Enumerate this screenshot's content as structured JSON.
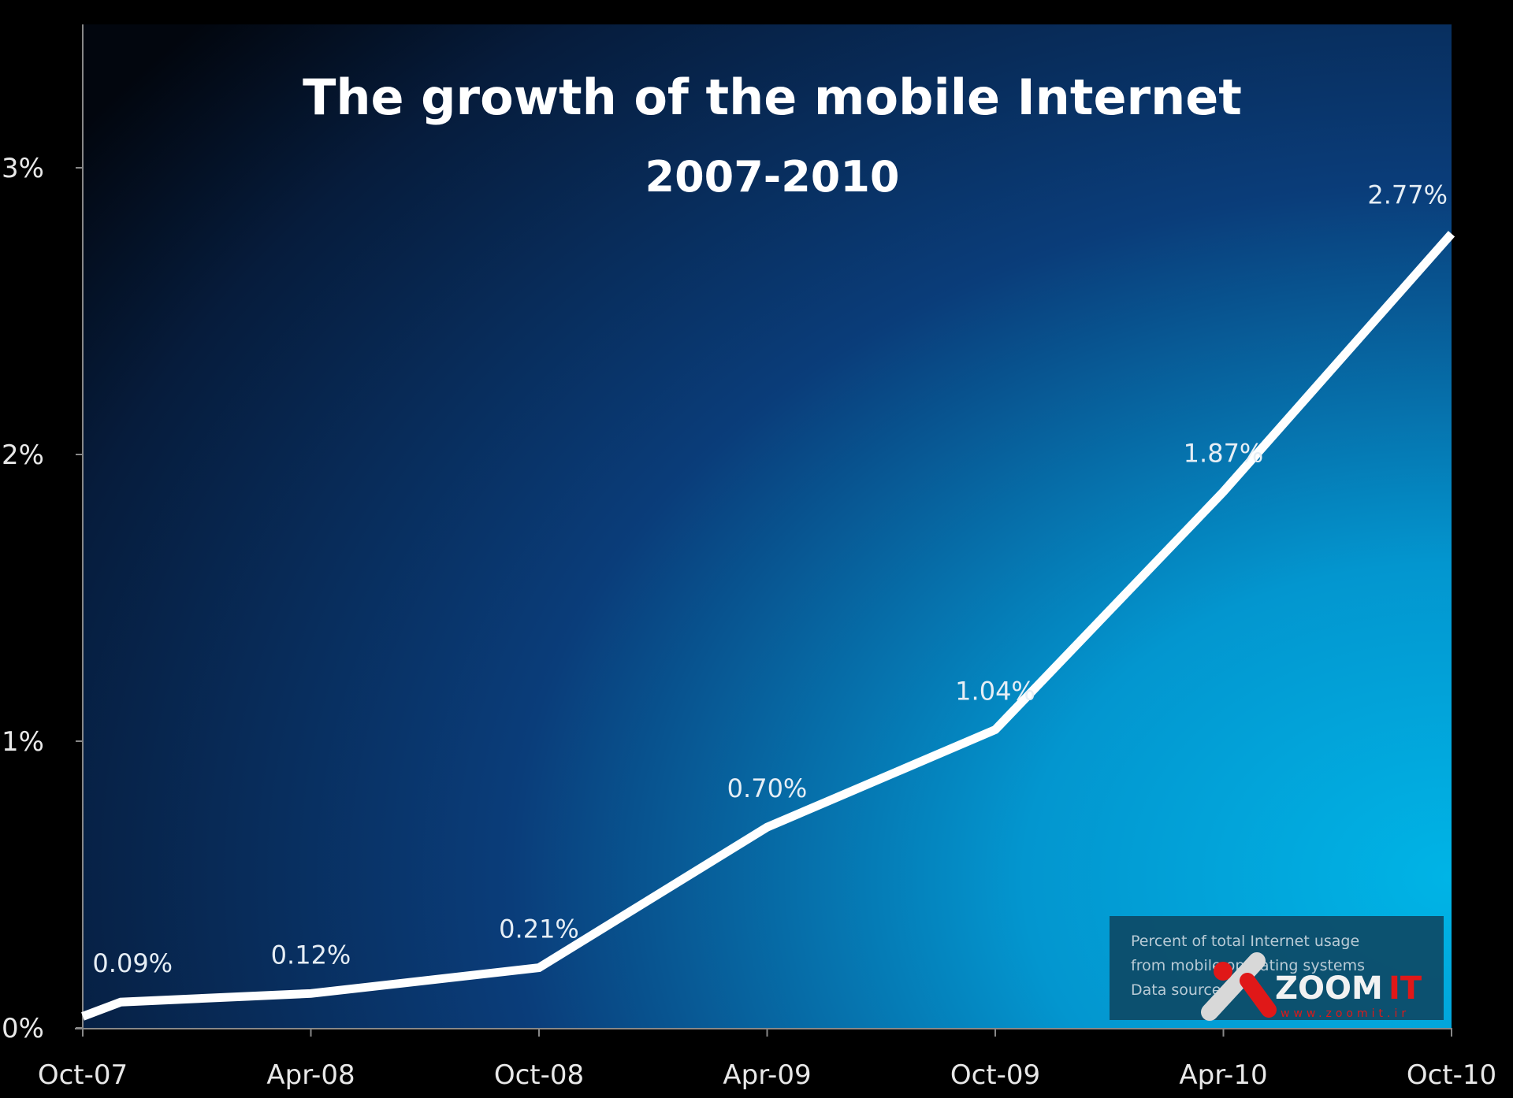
{
  "chart_data": {
    "type": "line",
    "title": "The growth of the mobile Internet",
    "subtitle": "2007-2010",
    "xlabel": "",
    "ylabel": "",
    "x_tick_labels": [
      "Oct-07",
      "Apr-08",
      "Oct-08",
      "Apr-09",
      "Oct-09",
      "Apr-10",
      "Oct-10"
    ],
    "y_tick_labels": [
      "0%",
      "1%",
      "2%",
      "3%"
    ],
    "ylim": [
      0,
      3.5
    ],
    "grid": false,
    "series": [
      {
        "x": [
          "2007-10",
          "2007-11",
          "2008-04",
          "2008-10",
          "2009-04",
          "2009-10",
          "2010-04",
          "2010-10"
        ],
        "values": [
          0.04,
          0.09,
          0.12,
          0.21,
          0.7,
          1.04,
          1.87,
          2.77
        ],
        "data_labels": [
          null,
          "0.09%",
          "0.12%",
          "0.21%",
          "0.70%",
          "1.04%",
          "1.87%",
          "2.77%"
        ],
        "color": "#ffffff"
      }
    ],
    "legend": {
      "position": "bottom-right",
      "lines": [
        "Percent of total Internet usage",
        "from mobile operating systems",
        "Data source:"
      ]
    },
    "background_colors": [
      "#02060e",
      "#0a3d7a",
      "#00aee0"
    ]
  },
  "watermark": {
    "brand": "ZOOMIT",
    "url": "www.zoomit.ir"
  }
}
